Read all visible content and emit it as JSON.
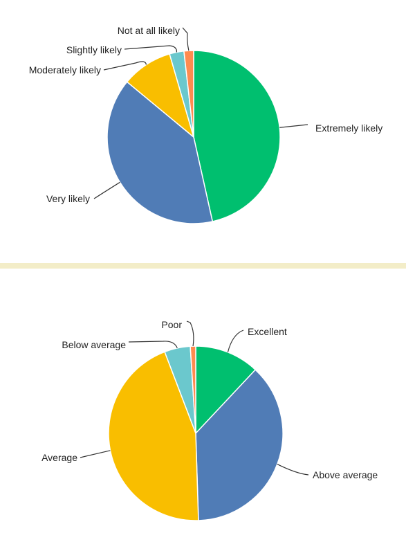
{
  "chart_data": [
    {
      "type": "pie",
      "title": "",
      "start_angle_deg": 0,
      "direction": "clockwise",
      "slices": [
        {
          "label": "Extremely likely",
          "value": 46.5,
          "color": "#00bf6f"
        },
        {
          "label": "Very likely",
          "value": 39.5,
          "color": "#507cb6"
        },
        {
          "label": "Moderately likely",
          "value": 9.5,
          "color": "#f9be00"
        },
        {
          "label": "Slightly likely",
          "value": 2.7,
          "color": "#6bc8cd"
        },
        {
          "label": "Not at all likely",
          "value": 1.8,
          "color": "#ff8b4f"
        }
      ]
    },
    {
      "type": "pie",
      "title": "",
      "start_angle_deg": 0,
      "direction": "clockwise",
      "slices": [
        {
          "label": "Excellent",
          "value": 12.0,
          "color": "#00bf6f"
        },
        {
          "label": "Above average",
          "value": 37.5,
          "color": "#507cb6"
        },
        {
          "label": "Average",
          "value": 44.7,
          "color": "#f9be00"
        },
        {
          "label": "Below average",
          "value": 4.8,
          "color": "#6bc8cd"
        },
        {
          "label": "Poor",
          "value": 1.0,
          "color": "#ff8b4f"
        }
      ]
    }
  ]
}
